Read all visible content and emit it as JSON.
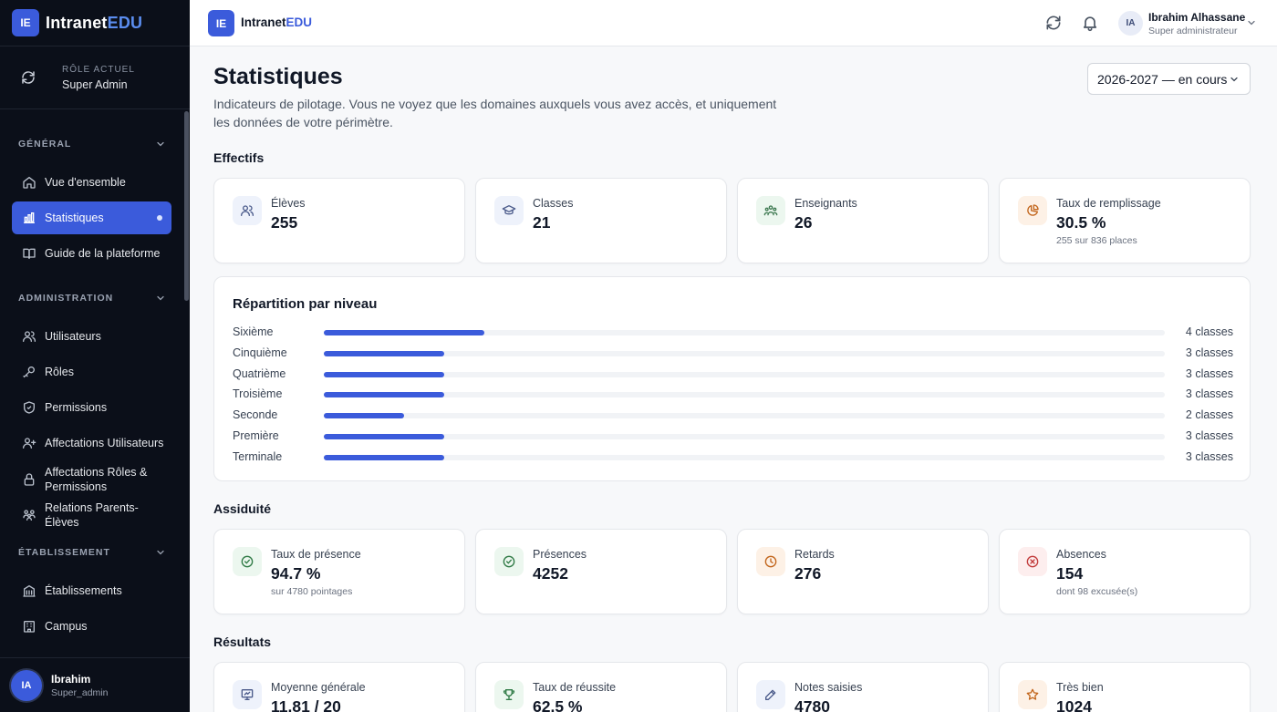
{
  "sidebar": {
    "logo_initials": "IE",
    "brand_a": "Intranet",
    "brand_b": "EDU",
    "role_label": "RÔLE ACTUEL",
    "role_value": "Super Admin",
    "sections": {
      "general": "GÉNÉRAL",
      "administration": "ADMINISTRATION",
      "etablissement": "ÉTABLISSEMENT"
    },
    "items": {
      "overview": "Vue d'ensemble",
      "stats": "Statistiques",
      "guide": "Guide de la plateforme",
      "users": "Utilisateurs",
      "roles": "Rôles",
      "permissions": "Permissions",
      "user_assignments": "Affectations Utilisateurs",
      "role_perm_assignments": "Affectations Rôles & Permissions",
      "parent_student": "Relations Parents-Élèves",
      "establishments": "Établissements",
      "campus": "Campus"
    },
    "user": {
      "initials": "IA",
      "name": "Ibrahim",
      "role": "Super_admin"
    }
  },
  "topbar": {
    "logo_initials": "IE",
    "brand_a": "Intranet",
    "brand_b": "EDU",
    "user_initials": "IA",
    "user_name": "Ibrahim Alhassane",
    "user_role": "Super administrateur"
  },
  "main": {
    "title": "Statistiques",
    "subtitle": "Indicateurs de pilotage. Vous ne voyez que les domaines auxquels vous avez accès, et uniquement les données de votre périmètre.",
    "year_selected": "2026-2027 — en cours",
    "sections": {
      "effectifs": "Effectifs",
      "assiduite": "Assiduité",
      "resultats": "Résultats"
    },
    "effectifs": [
      {
        "label": "Élèves",
        "value": "255",
        "sub": ""
      },
      {
        "label": "Classes",
        "value": "21",
        "sub": ""
      },
      {
        "label": "Enseignants",
        "value": "26",
        "sub": ""
      },
      {
        "label": "Taux de remplissage",
        "value": "30.5 %",
        "sub": "255 sur 836 places"
      }
    ],
    "repartition": {
      "title": "Répartition par niveau",
      "max_classes": 21,
      "levels": [
        {
          "name": "Sixième",
          "count": 4,
          "label": "4 classes"
        },
        {
          "name": "Cinquième",
          "count": 3,
          "label": "3 classes"
        },
        {
          "name": "Quatrième",
          "count": 3,
          "label": "3 classes"
        },
        {
          "name": "Troisième",
          "count": 3,
          "label": "3 classes"
        },
        {
          "name": "Seconde",
          "count": 2,
          "label": "2 classes"
        },
        {
          "name": "Première",
          "count": 3,
          "label": "3 classes"
        },
        {
          "name": "Terminale",
          "count": 3,
          "label": "3 classes"
        }
      ]
    },
    "assiduite": [
      {
        "label": "Taux de présence",
        "value": "94.7 %",
        "sub": "sur 4780 pointages"
      },
      {
        "label": "Présences",
        "value": "4252",
        "sub": ""
      },
      {
        "label": "Retards",
        "value": "276",
        "sub": ""
      },
      {
        "label": "Absences",
        "value": "154",
        "sub": "dont 98 excusée(s)"
      }
    ],
    "resultats": [
      {
        "label": "Moyenne générale",
        "value": "11.81 / 20",
        "sub": ""
      },
      {
        "label": "Taux de réussite",
        "value": "62.5 %",
        "sub": ""
      },
      {
        "label": "Notes saisies",
        "value": "4780",
        "sub": ""
      },
      {
        "label": "Très bien",
        "value": "1024",
        "sub": ""
      }
    ]
  },
  "colors": {
    "accent": "#3b5bdb",
    "sidebar_bg": "#0b0f19",
    "green": "#16a34a",
    "orange": "#ea7a1a",
    "red": "#dc2626"
  }
}
